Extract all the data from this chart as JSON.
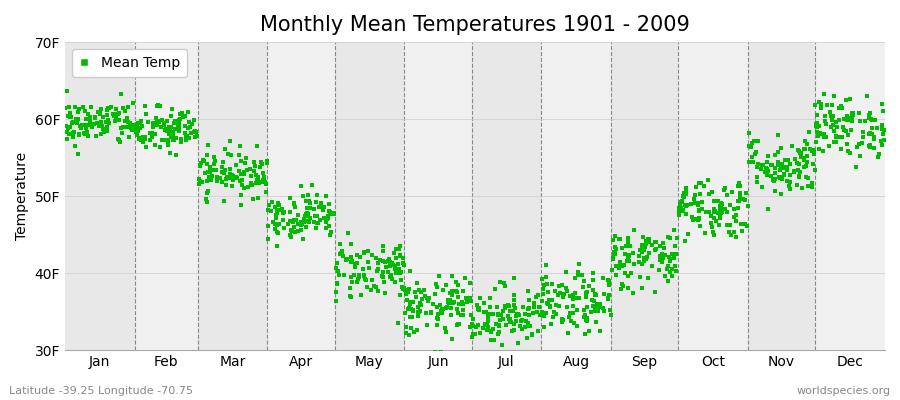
{
  "title": "Monthly Mean Temperatures 1901 - 2009",
  "ylabel": "Temperature",
  "ylim": [
    30,
    70
  ],
  "yticks": [
    30,
    40,
    50,
    60,
    70
  ],
  "ytick_labels": [
    "30F",
    "40F",
    "50F",
    "60F",
    "70F"
  ],
  "months": [
    "Jan",
    "Feb",
    "Mar",
    "Apr",
    "May",
    "Jun",
    "Jul",
    "Aug",
    "Sep",
    "Oct",
    "Nov",
    "Dec"
  ],
  "month_days": [
    31,
    28,
    31,
    30,
    31,
    30,
    31,
    31,
    30,
    31,
    30,
    31
  ],
  "month_means": [
    59.5,
    58.5,
    53.0,
    47.5,
    40.5,
    35.5,
    34.5,
    36.0,
    42.0,
    48.5,
    54.0,
    59.0
  ],
  "month_stds": [
    1.5,
    1.5,
    1.5,
    1.5,
    2.0,
    2.0,
    2.0,
    2.0,
    2.0,
    2.0,
    2.0,
    2.0
  ],
  "n_years": 109,
  "marker_color": "#00bb00",
  "marker": "s",
  "marker_size": 2.5,
  "background_color_odd": "#e8e8e8",
  "background_color_even": "#f0f0f0",
  "grid_color": "#888888",
  "title_fontsize": 15,
  "axis_fontsize": 10,
  "tick_fontsize": 10,
  "legend_label": "Mean Temp",
  "footer_left": "Latitude -39.25 Longitude -70.75",
  "footer_right": "worldspecies.org",
  "seed": 42
}
